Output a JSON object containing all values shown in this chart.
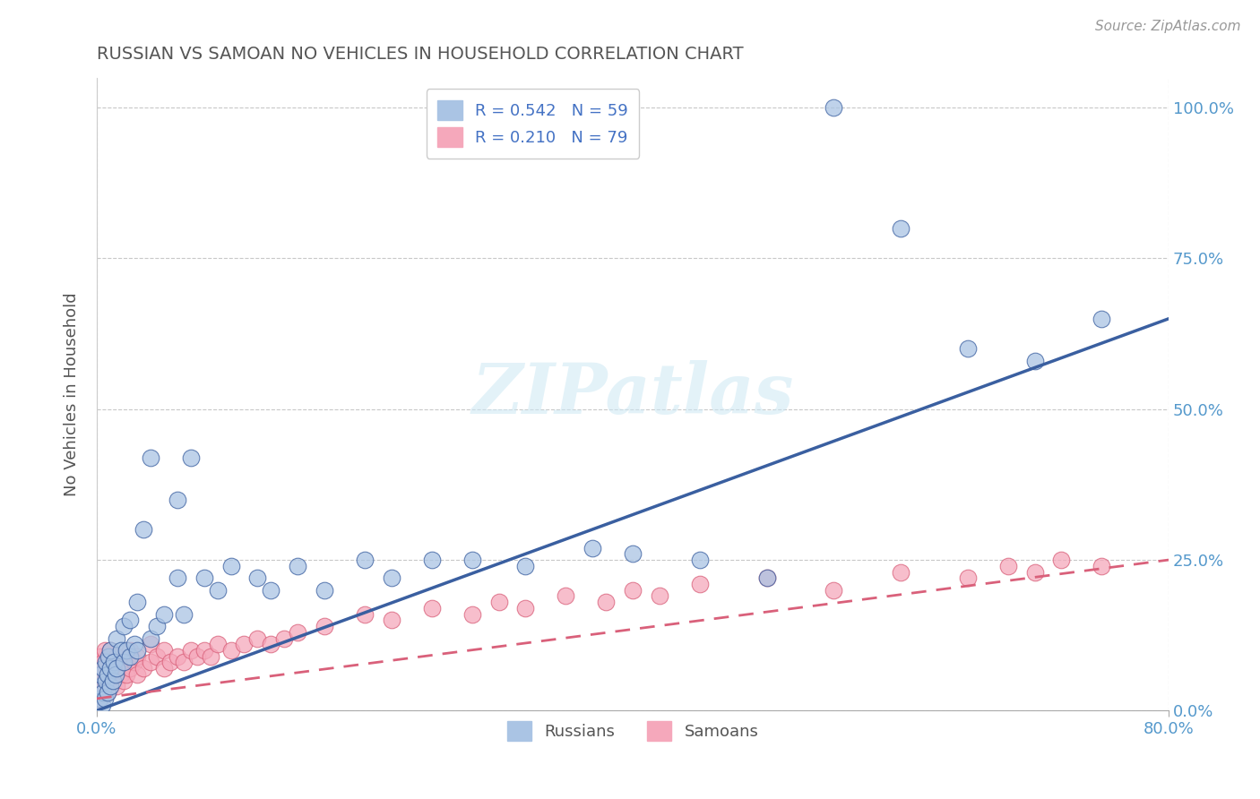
{
  "title": "RUSSIAN VS SAMOAN NO VEHICLES IN HOUSEHOLD CORRELATION CHART",
  "source": "Source: ZipAtlas.com",
  "ylabel": "No Vehicles in Household",
  "watermark": "ZIPatlas",
  "russian_color": "#aac4e4",
  "samoan_color": "#f5a8bb",
  "russian_line_color": "#3a5fa0",
  "samoan_line_color": "#d9607a",
  "title_color": "#555555",
  "axis_label_color": "#5599cc",
  "xlim": [
    0.0,
    0.8
  ],
  "ylim": [
    0.0,
    1.05
  ],
  "russian_scatter_x": [
    0.002,
    0.003,
    0.003,
    0.004,
    0.005,
    0.005,
    0.006,
    0.007,
    0.007,
    0.008,
    0.008,
    0.009,
    0.01,
    0.01,
    0.01,
    0.012,
    0.013,
    0.014,
    0.015,
    0.015,
    0.018,
    0.02,
    0.02,
    0.022,
    0.025,
    0.025,
    0.028,
    0.03,
    0.03,
    0.035,
    0.04,
    0.04,
    0.045,
    0.05,
    0.06,
    0.06,
    0.065,
    0.07,
    0.08,
    0.09,
    0.1,
    0.12,
    0.13,
    0.15,
    0.17,
    0.2,
    0.22,
    0.25,
    0.28,
    0.32,
    0.37,
    0.4,
    0.45,
    0.5,
    0.55,
    0.6,
    0.65,
    0.7,
    0.75
  ],
  "russian_scatter_y": [
    0.02,
    0.04,
    0.06,
    0.01,
    0.03,
    0.07,
    0.02,
    0.05,
    0.08,
    0.03,
    0.06,
    0.09,
    0.04,
    0.07,
    0.1,
    0.05,
    0.08,
    0.06,
    0.07,
    0.12,
    0.1,
    0.08,
    0.14,
    0.1,
    0.09,
    0.15,
    0.11,
    0.1,
    0.18,
    0.3,
    0.12,
    0.42,
    0.14,
    0.16,
    0.22,
    0.35,
    0.16,
    0.42,
    0.22,
    0.2,
    0.24,
    0.22,
    0.2,
    0.24,
    0.2,
    0.25,
    0.22,
    0.25,
    0.25,
    0.24,
    0.27,
    0.26,
    0.25,
    0.22,
    1.0,
    0.8,
    0.6,
    0.58,
    0.65
  ],
  "samoan_scatter_x": [
    0.001,
    0.001,
    0.001,
    0.002,
    0.002,
    0.002,
    0.003,
    0.003,
    0.003,
    0.004,
    0.004,
    0.005,
    0.005,
    0.006,
    0.006,
    0.007,
    0.007,
    0.008,
    0.008,
    0.009,
    0.009,
    0.01,
    0.01,
    0.01,
    0.012,
    0.013,
    0.014,
    0.015,
    0.015,
    0.016,
    0.018,
    0.02,
    0.02,
    0.022,
    0.025,
    0.025,
    0.028,
    0.03,
    0.03,
    0.035,
    0.04,
    0.04,
    0.045,
    0.05,
    0.05,
    0.055,
    0.06,
    0.065,
    0.07,
    0.075,
    0.08,
    0.085,
    0.09,
    0.1,
    0.11,
    0.12,
    0.13,
    0.14,
    0.15,
    0.17,
    0.2,
    0.22,
    0.25,
    0.28,
    0.3,
    0.32,
    0.35,
    0.38,
    0.4,
    0.42,
    0.45,
    0.5,
    0.55,
    0.6,
    0.65,
    0.68,
    0.7,
    0.72,
    0.75
  ],
  "samoan_scatter_y": [
    0.02,
    0.04,
    0.06,
    0.03,
    0.05,
    0.08,
    0.02,
    0.06,
    0.09,
    0.04,
    0.07,
    0.03,
    0.08,
    0.05,
    0.1,
    0.04,
    0.07,
    0.03,
    0.06,
    0.05,
    0.08,
    0.04,
    0.07,
    0.1,
    0.05,
    0.08,
    0.06,
    0.04,
    0.09,
    0.07,
    0.06,
    0.05,
    0.08,
    0.06,
    0.07,
    0.1,
    0.08,
    0.06,
    0.09,
    0.07,
    0.08,
    0.11,
    0.09,
    0.07,
    0.1,
    0.08,
    0.09,
    0.08,
    0.1,
    0.09,
    0.1,
    0.09,
    0.11,
    0.1,
    0.11,
    0.12,
    0.11,
    0.12,
    0.13,
    0.14,
    0.16,
    0.15,
    0.17,
    0.16,
    0.18,
    0.17,
    0.19,
    0.18,
    0.2,
    0.19,
    0.21,
    0.22,
    0.2,
    0.23,
    0.22,
    0.24,
    0.23,
    0.25,
    0.24
  ],
  "russian_line_x0": 0.0,
  "russian_line_y0": 0.0,
  "russian_line_x1": 0.8,
  "russian_line_y1": 0.65,
  "samoan_line_x0": 0.0,
  "samoan_line_y0": 0.02,
  "samoan_line_x1": 0.8,
  "samoan_line_y1": 0.25
}
